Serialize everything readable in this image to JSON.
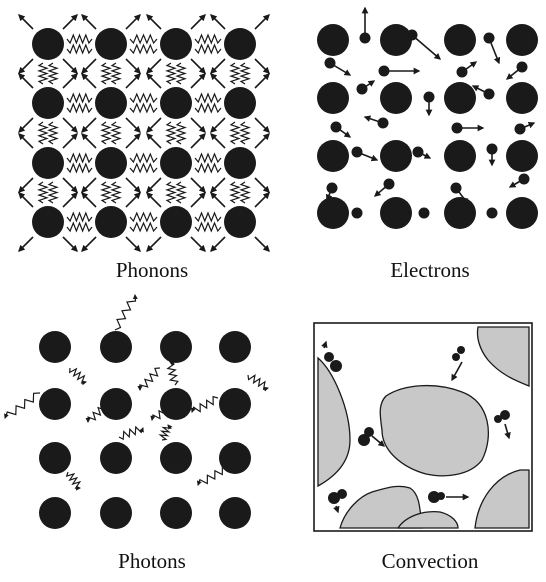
{
  "panels": [
    {
      "id": "phonons",
      "label": "Phonons"
    },
    {
      "id": "electrons",
      "label": "Electrons"
    },
    {
      "id": "photons",
      "label": "Photons"
    },
    {
      "id": "convection",
      "label": "Convection"
    }
  ],
  "colors": {
    "atom": "#1a1a1a",
    "particle_region": "#c8c8c8",
    "line": "#1a1a1a",
    "background": "#ffffff"
  },
  "icons": [
    "atom-circle",
    "arrow",
    "wavy-arrow",
    "spring-bond"
  ]
}
